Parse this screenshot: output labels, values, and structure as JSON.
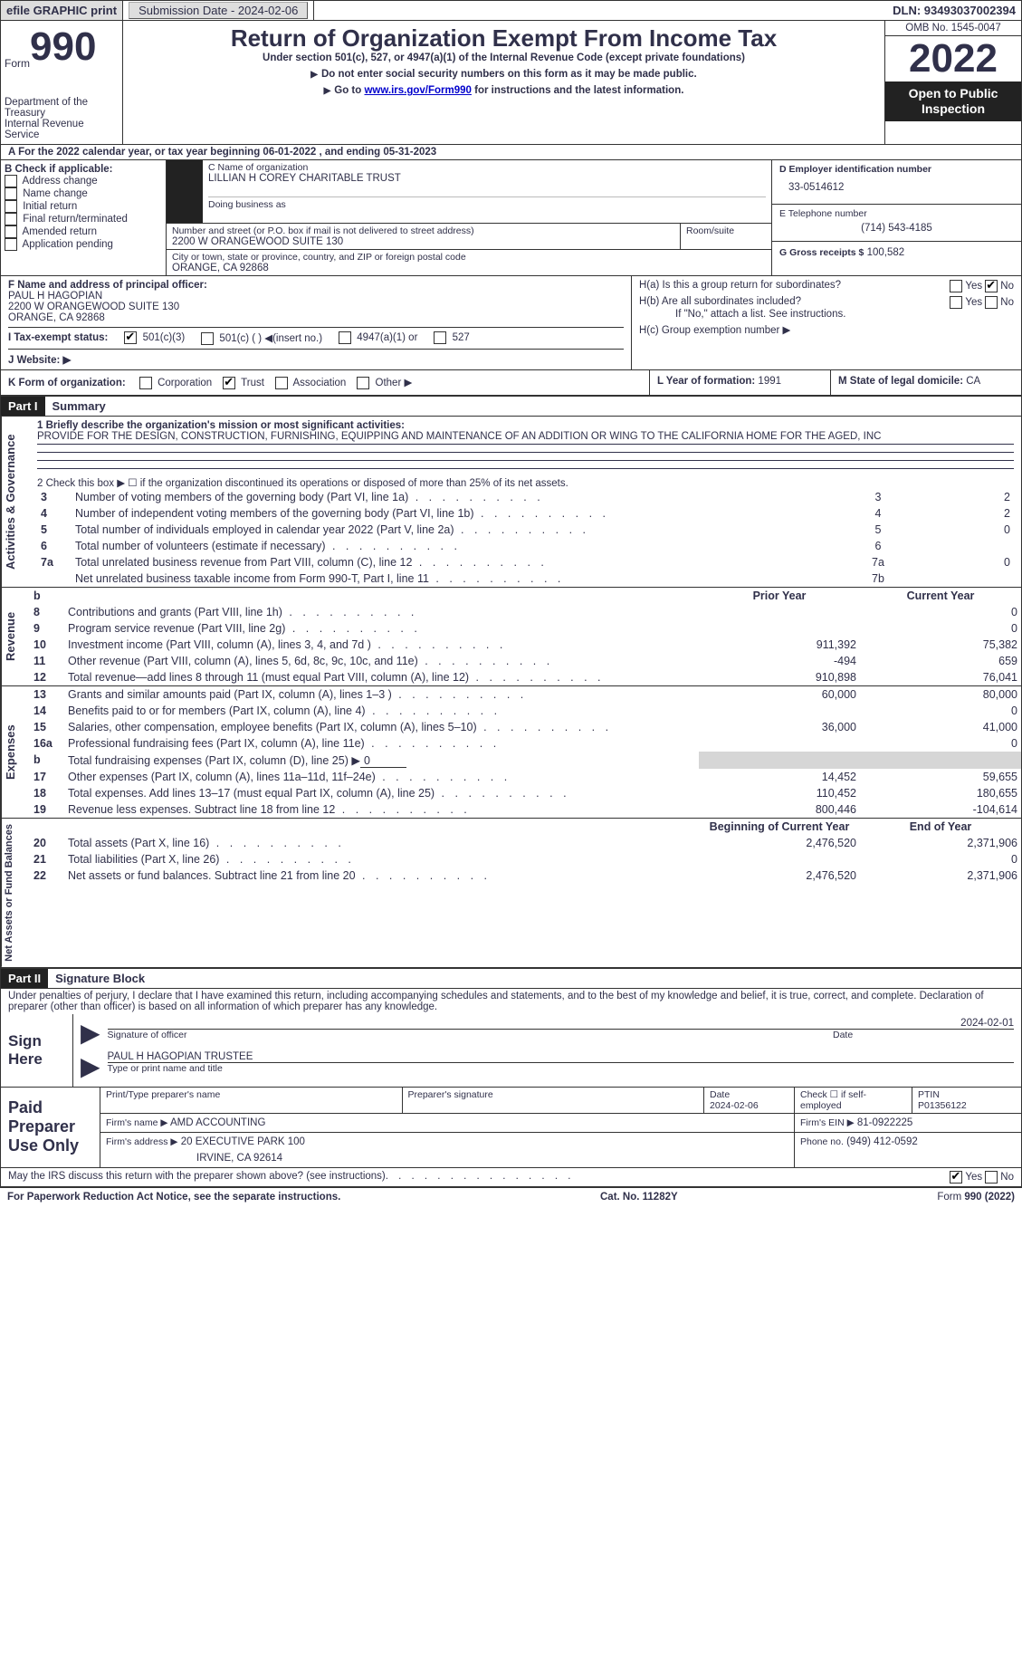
{
  "header_bar": {
    "efile": "efile GRAPHIC print",
    "submission": "Submission Date - 2024-02-06",
    "dln": "DLN: 93493037002394"
  },
  "form_box": {
    "form_word": "Form",
    "form_number": "990",
    "dept1": "Department of the Treasury",
    "dept2": "Internal Revenue Service"
  },
  "title_block": {
    "main": "Return of Organization Exempt From Income Tax",
    "sub1": "Under section 501(c), 527, or 4947(a)(1) of the Internal Revenue Code (except private foundations)",
    "sub2": "Do not enter social security numbers on this form as it may be made public.",
    "sub3_pre": "Go to ",
    "sub3_link": "www.irs.gov/Form990",
    "sub3_post": " for instructions and the latest information."
  },
  "right_box": {
    "omb": "OMB No. 1545-0047",
    "year": "2022",
    "open1": "Open to Public",
    "open2": "Inspection"
  },
  "line_a": "A For the 2022 calendar year, or tax year beginning 06-01-2022   , and ending 05-31-2023",
  "section_b": {
    "title": "B Check if applicable:",
    "items": [
      "Address change",
      "Name change",
      "Initial return",
      "Final return/terminated",
      "Amended return",
      "Application pending"
    ]
  },
  "section_c": {
    "label": "C Name of organization",
    "name": "LILLIAN H COREY CHARITABLE TRUST",
    "dba_label": "Doing business as",
    "street_label": "Number and street (or P.O. box if mail is not delivered to street address)",
    "room_label": "Room/suite",
    "street": "2200 W ORANGEWOOD SUITE 130",
    "city_label": "City or town, state or province, country, and ZIP or foreign postal code",
    "city": "ORANGE, CA  92868"
  },
  "section_d": {
    "label": "D Employer identification number",
    "val": "33-0514612"
  },
  "section_e": {
    "label": "E Telephone number",
    "val": "(714) 543-4185"
  },
  "section_g": {
    "label": "G Gross receipts $",
    "val": "100,582"
  },
  "section_f": {
    "label": "F  Name and address of principal officer:",
    "name": "PAUL H HAGOPIAN",
    "addr1": "2200 W ORANGEWOOD SUITE 130",
    "addr2": "ORANGE, CA  92868"
  },
  "section_h": {
    "ha": "H(a)  Is this a group return for subordinates?",
    "hb": "H(b)  Are all subordinates included?",
    "note": "If \"No,\" attach a list. See instructions.",
    "hc": "H(c)  Group exemption number ▶"
  },
  "yes": "Yes",
  "no": "No",
  "tax_exempt": {
    "label": "I   Tax-exempt status:",
    "opt1": "501(c)(3)",
    "opt2": "501(c) (  ) ◀(insert no.)",
    "opt3": "4947(a)(1) or",
    "opt4": "527"
  },
  "website": {
    "label": "J  Website: ▶"
  },
  "k": {
    "label": "K Form of organization:",
    "opts": [
      "Corporation",
      "Trust",
      "Association",
      "Other ▶"
    ],
    "checked": 1
  },
  "l": {
    "label": "L Year of formation:",
    "val": "1991"
  },
  "m": {
    "label": "M State of legal domicile:",
    "val": "CA"
  },
  "part1": {
    "tag": "Part I",
    "title": "Summary"
  },
  "q1": {
    "label": "1  Briefly describe the organization's mission or most significant activities:",
    "text": "PROVIDE FOR THE DESIGN, CONSTRUCTION, FURNISHING, EQUIPPING AND MAINTENANCE OF AN ADDITION OR WING TO THE CALIFORNIA HOME FOR THE AGED, INC"
  },
  "governance_label": "Activities & Governance",
  "revenue_label": "Revenue",
  "expenses_label": "Expenses",
  "netassets_label": "Net Assets or Fund Balances",
  "q2": "2   Check this box ▶ ☐ if the organization discontinued its operations or disposed of more than 25% of its net assets.",
  "lines_gov": [
    {
      "n": "3",
      "t": "Number of voting members of the governing body (Part VI, line 1a)",
      "box": "3",
      "v": "2"
    },
    {
      "n": "4",
      "t": "Number of independent voting members of the governing body (Part VI, line 1b)",
      "box": "4",
      "v": "2"
    },
    {
      "n": "5",
      "t": "Total number of individuals employed in calendar year 2022 (Part V, line 2a)",
      "box": "5",
      "v": "0"
    },
    {
      "n": "6",
      "t": "Total number of volunteers (estimate if necessary)",
      "box": "6",
      "v": ""
    },
    {
      "n": "7a",
      "t": "Total unrelated business revenue from Part VIII, column (C), line 12",
      "box": "7a",
      "v": "0"
    },
    {
      "n": "",
      "t": "Net unrelated business taxable income from Form 990-T, Part I, line 11",
      "box": "7b",
      "v": ""
    }
  ],
  "col_headers": {
    "b": "b",
    "prior": "Prior Year",
    "current": "Current Year"
  },
  "lines_rev": [
    {
      "n": "8",
      "t": "Contributions and grants (Part VIII, line 1h)",
      "p": "",
      "c": "0"
    },
    {
      "n": "9",
      "t": "Program service revenue (Part VIII, line 2g)",
      "p": "",
      "c": "0"
    },
    {
      "n": "10",
      "t": "Investment income (Part VIII, column (A), lines 3, 4, and 7d )",
      "p": "911,392",
      "c": "75,382"
    },
    {
      "n": "11",
      "t": "Other revenue (Part VIII, column (A), lines 5, 6d, 8c, 9c, 10c, and 11e)",
      "p": "-494",
      "c": "659"
    },
    {
      "n": "12",
      "t": "Total revenue—add lines 8 through 11 (must equal Part VIII, column (A), line 12)",
      "p": "910,898",
      "c": "76,041"
    }
  ],
  "lines_exp": [
    {
      "n": "13",
      "t": "Grants and similar amounts paid (Part IX, column (A), lines 1–3 )",
      "p": "60,000",
      "c": "80,000"
    },
    {
      "n": "14",
      "t": "Benefits paid to or for members (Part IX, column (A), line 4)",
      "p": "",
      "c": "0"
    },
    {
      "n": "15",
      "t": "Salaries, other compensation, employee benefits (Part IX, column (A), lines 5–10)",
      "p": "36,000",
      "c": "41,000"
    },
    {
      "n": "16a",
      "t": "Professional fundraising fees (Part IX, column (A), line 11e)",
      "p": "",
      "c": "0"
    },
    {
      "n": "b",
      "t": "Total fundraising expenses (Part IX, column (D), line 25) ▶",
      "p": "shade",
      "c": "shade",
      "inline": "0"
    },
    {
      "n": "17",
      "t": "Other expenses (Part IX, column (A), lines 11a–11d, 11f–24e)",
      "p": "14,452",
      "c": "59,655"
    },
    {
      "n": "18",
      "t": "Total expenses. Add lines 13–17 (must equal Part IX, column (A), line 25)",
      "p": "110,452",
      "c": "180,655"
    },
    {
      "n": "19",
      "t": "Revenue less expenses. Subtract line 18 from line 12",
      "p": "800,446",
      "c": "-104,614"
    }
  ],
  "col_headers2": {
    "beg": "Beginning of Current Year",
    "end": "End of Year"
  },
  "lines_net": [
    {
      "n": "20",
      "t": "Total assets (Part X, line 16)",
      "p": "2,476,520",
      "c": "2,371,906"
    },
    {
      "n": "21",
      "t": "Total liabilities (Part X, line 26)",
      "p": "",
      "c": "0"
    },
    {
      "n": "22",
      "t": "Net assets or fund balances. Subtract line 21 from line 20",
      "p": "2,476,520",
      "c": "2,371,906"
    }
  ],
  "part2": {
    "tag": "Part II",
    "title": "Signature Block"
  },
  "perjury": "Under penalties of perjury, I declare that I have examined this return, including accompanying schedules and statements, and to the best of my knowledge and belief, it is true, correct, and complete. Declaration of preparer (other than officer) is based on all information of which preparer has any knowledge.",
  "sign": {
    "here": "Sign Here",
    "sig_label": "Signature of officer",
    "date": "2024-02-01",
    "name": "PAUL H HAGOPIAN  TRUSTEE",
    "name_label": "Type or print name and title"
  },
  "paid": {
    "title": "Paid Preparer Use Only",
    "h1": "Print/Type preparer's name",
    "h2": "Preparer's signature",
    "h3": "Date",
    "h3v": "2024-02-06",
    "h4": "Check ☐ if self-employed",
    "h5": "PTIN",
    "h5v": "P01356122",
    "firm_label": "Firm's name    ▶",
    "firm": "AMD ACCOUNTING",
    "ein_label": "Firm's EIN ▶",
    "ein": "81-0922225",
    "addr_label": "Firm's address ▶",
    "addr1": "20 EXECUTIVE PARK 100",
    "addr2": "IRVINE, CA  92614",
    "phone_label": "Phone no.",
    "phone": "(949) 412-0592"
  },
  "discuss": "May the IRS discuss this return with the preparer shown above? (see instructions)",
  "footer": {
    "left": "For Paperwork Reduction Act Notice, see the separate instructions.",
    "mid": "Cat. No. 11282Y",
    "right": "Form 990 (2022)"
  }
}
